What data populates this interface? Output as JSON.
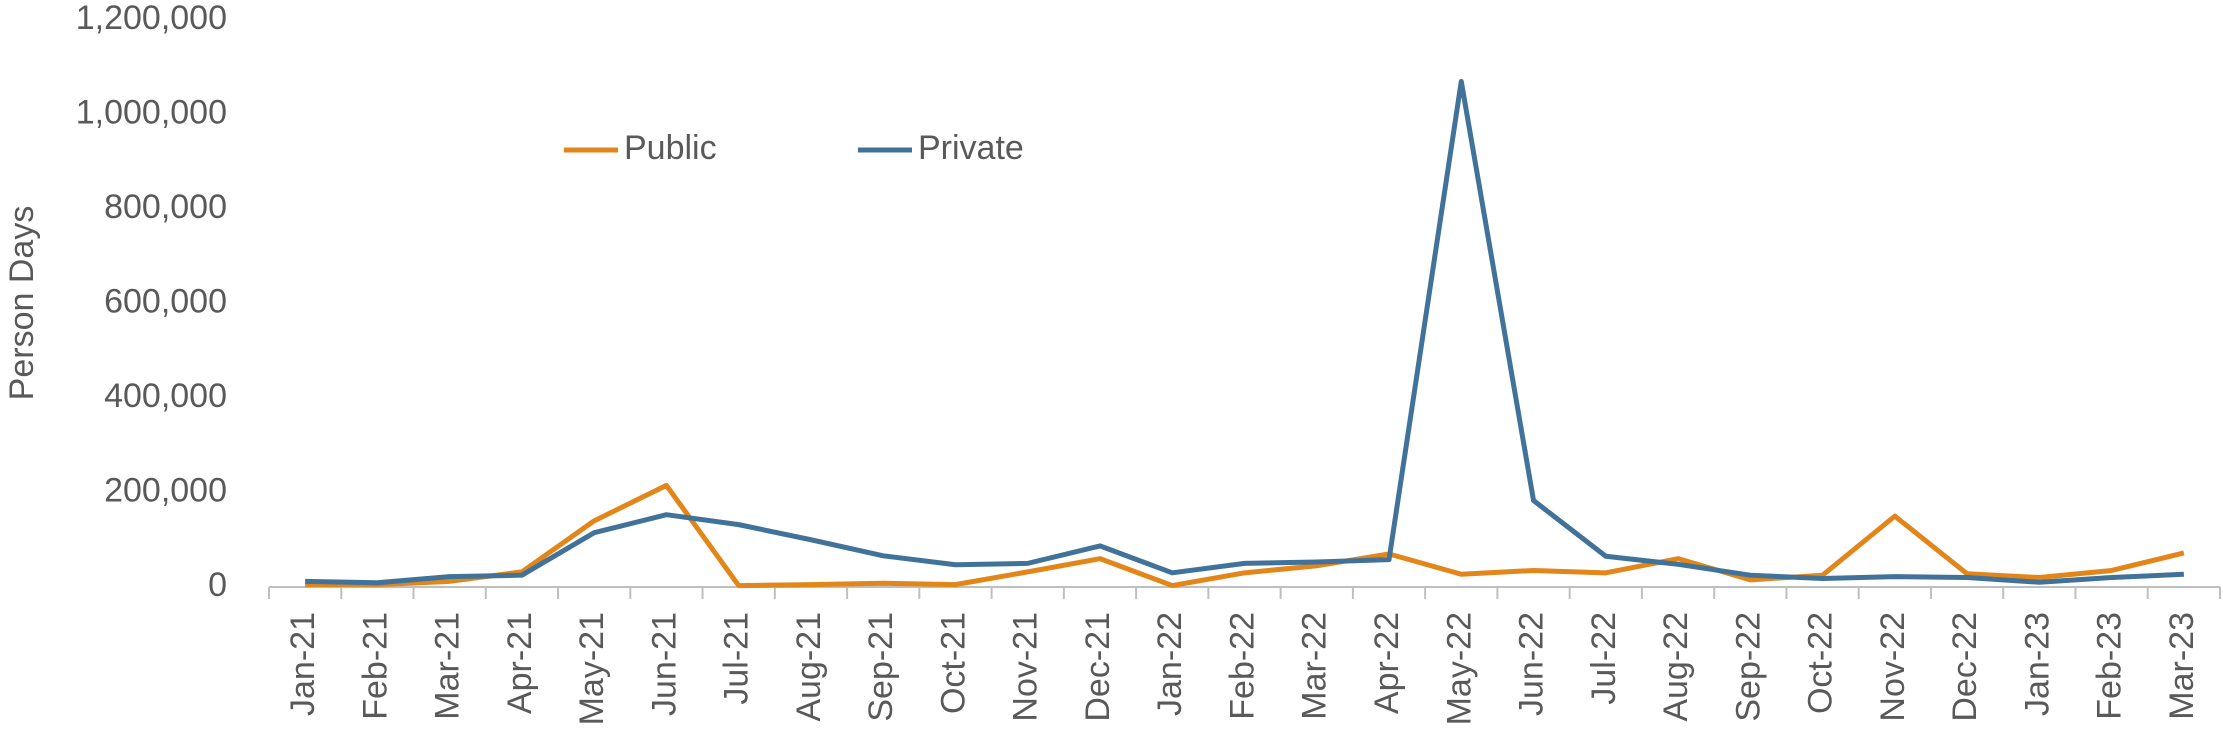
{
  "chart_data": {
    "type": "line",
    "y_label": "Person Days",
    "categories": [
      "Jan-21",
      "Feb-21",
      "Mar-21",
      "Apr-21",
      "May-21",
      "Jun-21",
      "Jul-21",
      "Aug-21",
      "Sep-21",
      "Oct-21",
      "Nov-21",
      "Dec-21",
      "Jan-22",
      "Feb-22",
      "Mar-22",
      "Apr-22",
      "May-22",
      "Jun-22",
      "Jul-22",
      "Aug-22",
      "Sep-22",
      "Oct-22",
      "Nov-22",
      "Dec-22",
      "Jan-23",
      "Feb-23",
      "Mar-23"
    ],
    "series": [
      {
        "name": "Public",
        "color": "#e3861a",
        "values": [
          5000,
          5000,
          12000,
          32000,
          140000,
          215000,
          3000,
          5000,
          8000,
          5000,
          32000,
          60000,
          3000,
          30000,
          45000,
          70000,
          27000,
          35000,
          30000,
          60000,
          15000,
          25000,
          150000,
          28000,
          20000,
          35000,
          72000
        ]
      },
      {
        "name": "Private",
        "color": "#41739a",
        "values": [
          12000,
          9000,
          22000,
          25000,
          115000,
          153000,
          132000,
          100000,
          66000,
          47000,
          50000,
          87000,
          30000,
          50000,
          53000,
          58000,
          1070000,
          183000,
          65000,
          48000,
          25000,
          18000,
          22000,
          20000,
          10000,
          20000,
          27000
        ]
      }
    ],
    "ylim": [
      0,
      1200000
    ],
    "yticks": [
      0,
      {
        "value": 200000,
        "label": "200,000"
      },
      {
        "value": 400000,
        "label": "400,000"
      },
      {
        "value": 600000,
        "label": "600,000"
      },
      {
        "value": 800000,
        "label": "800,000"
      },
      {
        "value": 1000000,
        "label": "1,000,000"
      },
      {
        "value": 1200000,
        "label": "1,200,000"
      }
    ],
    "grid": false,
    "legend": "top-left"
  }
}
